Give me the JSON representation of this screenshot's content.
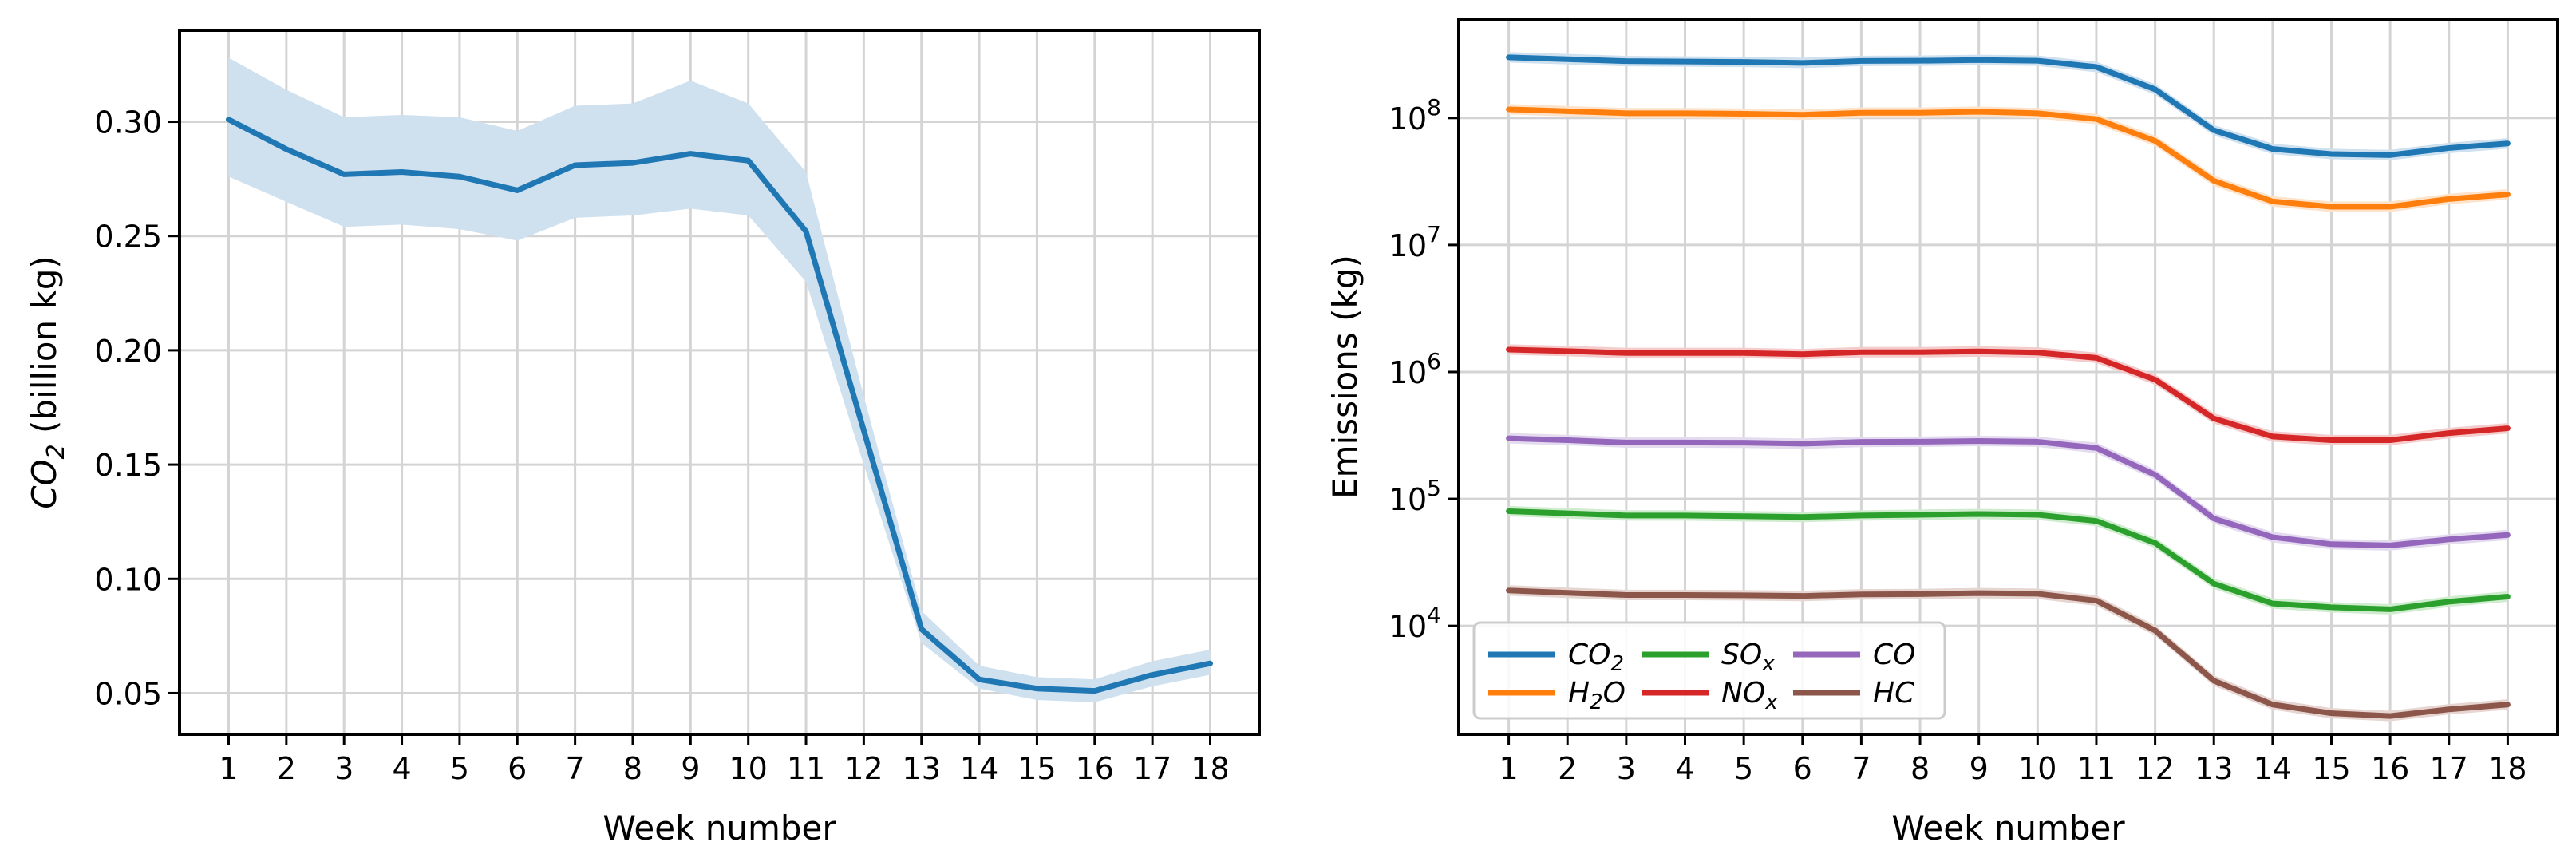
{
  "chart_data": [
    {
      "type": "line",
      "title": "",
      "xlabel": "Week number",
      "ylabel": "CO2 (billion kg)",
      "ylabel_parts": {
        "main": "CO",
        "sub": "2",
        "rest": " (billion kg)"
      },
      "x": [
        1,
        2,
        3,
        4,
        5,
        6,
        7,
        8,
        9,
        10,
        11,
        12,
        13,
        14,
        15,
        16,
        17,
        18
      ],
      "x_tick_labels": [
        "1",
        "2",
        "3",
        "4",
        "5",
        "6",
        "7",
        "8",
        "9",
        "10",
        "11",
        "12",
        "13",
        "14",
        "15",
        "16",
        "17",
        "18"
      ],
      "xlim": [
        0.15,
        18.85
      ],
      "ylim": [
        0.032,
        0.34
      ],
      "y_ticks": [
        0.05,
        0.1,
        0.15,
        0.2,
        0.25,
        0.3
      ],
      "y_tick_labels": [
        "0.05",
        "0.10",
        "0.15",
        "0.20",
        "0.25",
        "0.30"
      ],
      "grid": true,
      "series": [
        {
          "name": "CO2",
          "color": "#1f77b4",
          "band_color": "#cfe0ef",
          "values": [
            0.301,
            0.288,
            0.277,
            0.278,
            0.276,
            0.27,
            0.281,
            0.282,
            0.286,
            0.283,
            0.252,
            0.165,
            0.078,
            0.056,
            0.052,
            0.051,
            0.058,
            0.063
          ],
          "lower": [
            0.276,
            0.265,
            0.254,
            0.255,
            0.253,
            0.248,
            0.258,
            0.259,
            0.262,
            0.259,
            0.23,
            0.15,
            0.072,
            0.052,
            0.047,
            0.046,
            0.053,
            0.058
          ],
          "upper": [
            0.328,
            0.314,
            0.302,
            0.303,
            0.302,
            0.296,
            0.307,
            0.308,
            0.318,
            0.308,
            0.278,
            0.18,
            0.086,
            0.062,
            0.057,
            0.056,
            0.064,
            0.069
          ]
        }
      ]
    },
    {
      "type": "line",
      "title": "",
      "xlabel": "Week number",
      "ylabel": "Emissions (kg)",
      "y_scale": "log",
      "x": [
        1,
        2,
        3,
        4,
        5,
        6,
        7,
        8,
        9,
        10,
        11,
        12,
        13,
        14,
        15,
        16,
        17,
        18
      ],
      "x_tick_labels": [
        "1",
        "2",
        "3",
        "4",
        "5",
        "6",
        "7",
        "8",
        "9",
        "10",
        "11",
        "12",
        "13",
        "14",
        "15",
        "16",
        "17",
        "18"
      ],
      "xlim": [
        0.15,
        18.85
      ],
      "ylim": [
        1400,
        600000000
      ],
      "y_ticks": [
        10000,
        100000,
        1000000,
        10000000,
        100000000
      ],
      "y_tick_exponents": [
        "4",
        "5",
        "6",
        "7",
        "8"
      ],
      "y_tick_base": "10",
      "grid": true,
      "legend": {
        "position": "lower-left",
        "entries": [
          {
            "main": "CO",
            "sub": "2",
            "series": "CO2"
          },
          {
            "main": "H",
            "sub": "2",
            "rest": "O",
            "series": "H2O"
          },
          {
            "main": "SO",
            "sub": "x",
            "series": "SOx"
          },
          {
            "main": "NO",
            "sub": "x",
            "series": "NOx"
          },
          {
            "main": "CO",
            "sub": "",
            "series": "CO"
          },
          {
            "main": "HC",
            "sub": "",
            "series": "HC"
          }
        ]
      },
      "series": [
        {
          "name": "CO2",
          "color": "#1f77b4",
          "band_color": "#cfe0ef",
          "values": [
            300000000,
            290000000,
            280000000,
            278000000,
            276000000,
            271000000,
            281000000,
            282000000,
            286000000,
            282000000,
            252000000,
            168000000,
            80000000,
            57000000,
            52000000,
            51000000,
            58000000,
            63000000
          ]
        },
        {
          "name": "H2O",
          "color": "#ff7f0e",
          "band_color": "#fde3cb",
          "values": [
            117000000,
            113000000,
            109000000,
            109000000,
            108000000,
            106000000,
            110000000,
            110000000,
            112000000,
            109000000,
            98000000,
            66000000,
            32000000,
            22000000,
            20000000,
            20000000,
            23000000,
            25000000
          ]
        },
        {
          "name": "NOx",
          "color": "#d62728",
          "band_color": "#f4cccc",
          "values": [
            1500000,
            1460000,
            1410000,
            1410000,
            1410000,
            1380000,
            1430000,
            1430000,
            1450000,
            1420000,
            1290000,
            870000,
            430000,
            310000,
            290000,
            290000,
            330000,
            360000
          ]
        },
        {
          "name": "CO",
          "color": "#9467bd",
          "band_color": "#e5dbef",
          "values": [
            300000,
            290000,
            278000,
            278000,
            277000,
            272000,
            281000,
            282000,
            286000,
            282000,
            252000,
            155000,
            70000,
            50000,
            44000,
            43000,
            48000,
            52000
          ]
        },
        {
          "name": "SOx",
          "color": "#2ca02c",
          "band_color": "#cfeccf",
          "values": [
            80000,
            77000,
            74000,
            74000,
            73000,
            72000,
            74000,
            75000,
            76000,
            75000,
            67000,
            45000,
            21500,
            15000,
            14000,
            13500,
            15500,
            17000
          ]
        },
        {
          "name": "HC",
          "color": "#8c564b",
          "band_color": "#e6d5d1",
          "values": [
            19000,
            18200,
            17500,
            17500,
            17400,
            17200,
            17700,
            17800,
            18100,
            17900,
            15800,
            9200,
            3700,
            2400,
            2050,
            1950,
            2200,
            2400
          ]
        }
      ]
    }
  ]
}
